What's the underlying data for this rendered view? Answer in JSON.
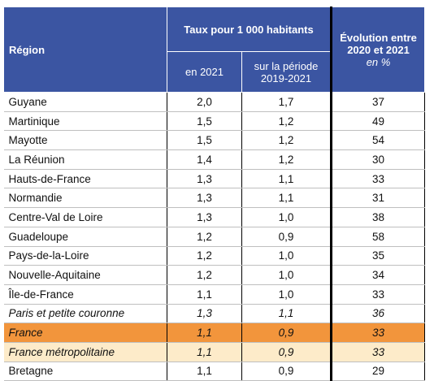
{
  "table": {
    "header": {
      "region": "Région",
      "rate": "Taux pour 1 000 habitants",
      "rate_2021": "en 2021",
      "rate_period": "sur la période 2019-2021",
      "evolution": "Évolution entre 2020 et 2021",
      "evolution_unit": "en %"
    },
    "rows": [
      [
        "Guyane",
        "2,0",
        "1,7",
        "37"
      ],
      [
        "Martinique",
        "1,5",
        "1,2",
        "49"
      ],
      [
        "Mayotte",
        "1,5",
        "1,2",
        "54"
      ],
      [
        "La Réunion",
        "1,4",
        "1,2",
        "30"
      ],
      [
        "Hauts-de-France",
        "1,3",
        "1,1",
        "33"
      ],
      [
        "Normandie",
        "1,3",
        "1,1",
        "31"
      ],
      [
        "Centre-Val de Loire",
        "1,3",
        "1,0",
        "38"
      ],
      [
        "Guadeloupe",
        "1,2",
        "0,9",
        "58"
      ],
      [
        "Pays-de-la-Loire",
        "1,2",
        "1,0",
        "35"
      ],
      [
        "Nouvelle-Aquitaine",
        "1,2",
        "1,0",
        "34"
      ],
      [
        "Île-de-France",
        "1,1",
        "1,0",
        "33"
      ],
      [
        "Paris et petite couronne",
        "1,3",
        "1,1",
        "36"
      ],
      [
        "France",
        "1,1",
        "0,9",
        "33"
      ],
      [
        "France métropolitaine",
        "1,1",
        "0,9",
        "33"
      ],
      [
        "Bretagne",
        "1,1",
        "0,9",
        "29"
      ]
    ]
  }
}
